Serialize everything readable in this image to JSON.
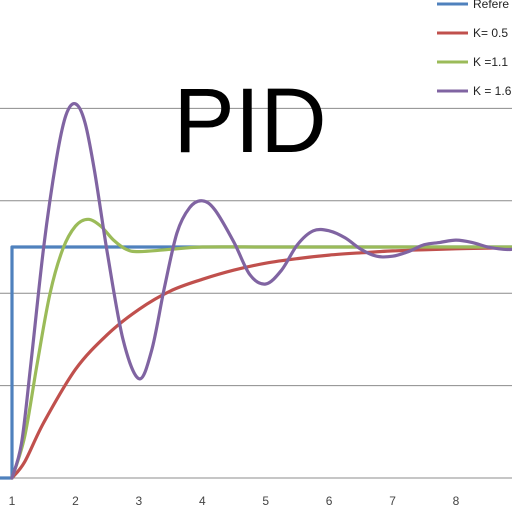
{
  "chart_data": {
    "type": "line",
    "title": "PID",
    "xlabel": "",
    "ylabel": "",
    "xlim": [
      0.8,
      8.9
    ],
    "ylim": [
      0,
      1.6
    ],
    "x_ticks": [
      "1",
      "2",
      "3",
      "4",
      "5",
      "6",
      "7",
      "8"
    ],
    "y_gridlines": [
      0,
      0.4,
      0.8,
      1.2,
      1.6
    ],
    "grid": true,
    "legend_position": "top-right",
    "series": [
      {
        "name": "Refere",
        "color": "#4f81bd",
        "x": [
          0.8,
          1,
          1,
          8.9
        ],
        "y": [
          0,
          0,
          1,
          1
        ]
      },
      {
        "name": "K= 0.5",
        "color": "#c0504d",
        "x": [
          1,
          1.2,
          1.5,
          2,
          2.5,
          3,
          3.5,
          4,
          4.5,
          5,
          5.5,
          6,
          6.5,
          7,
          7.5,
          8,
          8.5,
          8.9
        ],
        "y": [
          0,
          0.07,
          0.24,
          0.47,
          0.62,
          0.73,
          0.81,
          0.86,
          0.9,
          0.93,
          0.95,
          0.965,
          0.975,
          0.983,
          0.988,
          0.992,
          0.995,
          0.997
        ]
      },
      {
        "name": "K =1.1",
        "color": "#9bbb59",
        "x": [
          1,
          1.2,
          1.4,
          1.6,
          1.8,
          2,
          2.2,
          2.4,
          2.6,
          2.8,
          3,
          3.5,
          4,
          5,
          6,
          7,
          8,
          8.9
        ],
        "y": [
          0,
          0.18,
          0.5,
          0.8,
          0.99,
          1.09,
          1.12,
          1.09,
          1.03,
          0.99,
          0.98,
          0.99,
          1.0,
          1.0,
          1.0,
          1.0,
          1.0,
          1.0
        ]
      },
      {
        "name": "K = 1.6",
        "color": "#8064a2",
        "x": [
          1,
          1.15,
          1.3,
          1.5,
          1.7,
          1.85,
          2,
          2.15,
          2.3,
          2.5,
          2.75,
          3,
          3.2,
          3.4,
          3.6,
          3.8,
          4,
          4.2,
          4.5,
          4.75,
          5,
          5.25,
          5.5,
          5.75,
          6,
          6.25,
          6.5,
          6.75,
          7,
          7.25,
          7.5,
          7.75,
          8,
          8.25,
          8.5,
          8.75,
          8.9
        ],
        "y": [
          0,
          0.15,
          0.5,
          1.0,
          1.38,
          1.57,
          1.62,
          1.54,
          1.33,
          0.98,
          0.6,
          0.43,
          0.55,
          0.82,
          1.06,
          1.17,
          1.2,
          1.16,
          1.02,
          0.88,
          0.84,
          0.9,
          1.01,
          1.07,
          1.07,
          1.04,
          0.99,
          0.96,
          0.96,
          0.98,
          1.01,
          1.02,
          1.03,
          1.02,
          1.0,
          0.99,
          0.99
        ]
      }
    ]
  }
}
